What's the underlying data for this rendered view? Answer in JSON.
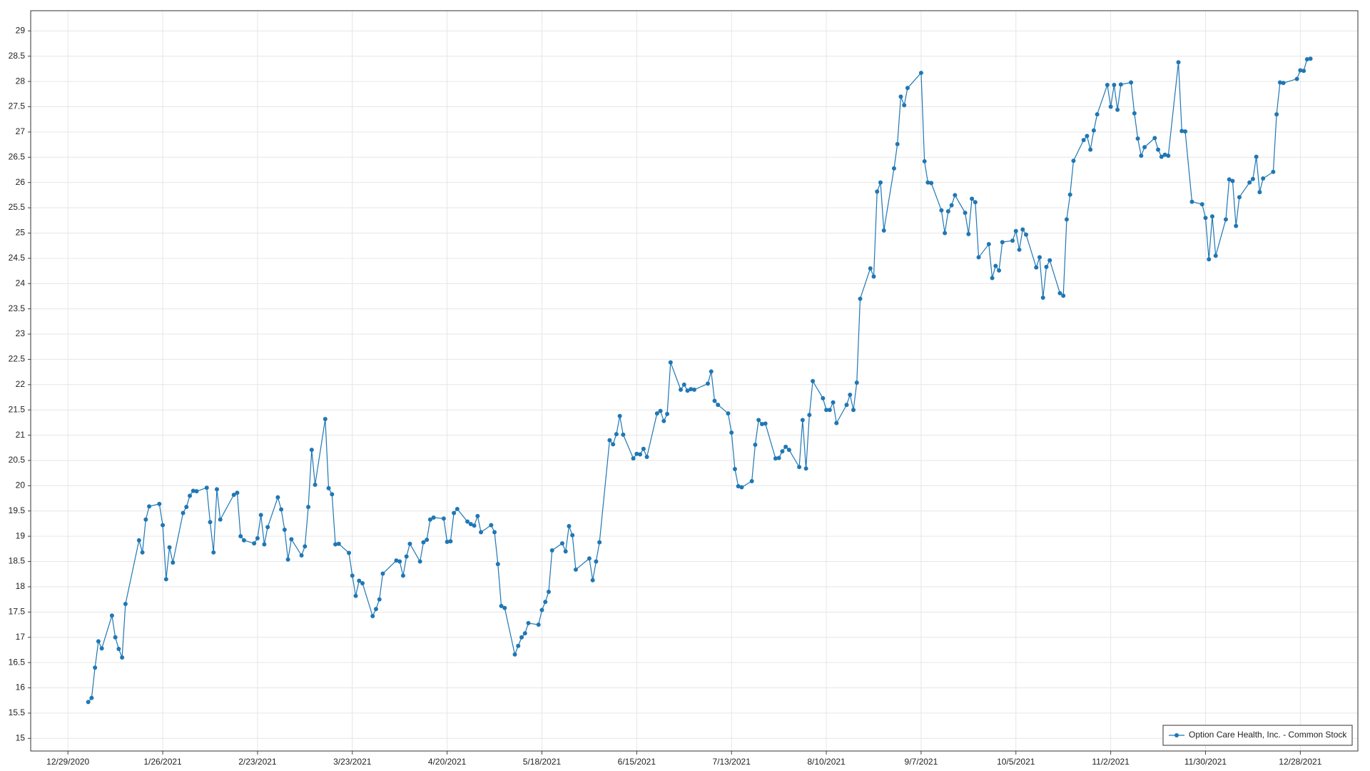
{
  "chart_data": {
    "type": "line",
    "x": [
      "1/4/2021",
      "1/5/2021",
      "1/6/2021",
      "1/7/2021",
      "1/8/2021",
      "1/11/2021",
      "1/12/2021",
      "1/13/2021",
      "1/14/2021",
      "1/15/2021",
      "1/19/2021",
      "1/20/2021",
      "1/21/2021",
      "1/22/2021",
      "1/25/2021",
      "1/26/2021",
      "1/27/2021",
      "1/28/2021",
      "1/29/2021",
      "2/1/2021",
      "2/2/2021",
      "2/3/2021",
      "2/4/2021",
      "2/5/2021",
      "2/8/2021",
      "2/9/2021",
      "2/10/2021",
      "2/11/2021",
      "2/12/2021",
      "2/16/2021",
      "2/17/2021",
      "2/18/2021",
      "2/19/2021",
      "2/22/2021",
      "2/23/2021",
      "2/24/2021",
      "2/25/2021",
      "2/26/2021",
      "3/1/2021",
      "3/2/2021",
      "3/3/2021",
      "3/4/2021",
      "3/5/2021",
      "3/8/2021",
      "3/9/2021",
      "3/10/2021",
      "3/11/2021",
      "3/12/2021",
      "3/15/2021",
      "3/16/2021",
      "3/17/2021",
      "3/18/2021",
      "3/19/2021",
      "3/22/2021",
      "3/23/2021",
      "3/24/2021",
      "3/25/2021",
      "3/26/2021",
      "3/29/2021",
      "3/30/2021",
      "3/31/2021",
      "4/1/2021",
      "4/5/2021",
      "4/6/2021",
      "4/7/2021",
      "4/8/2021",
      "4/9/2021",
      "4/12/2021",
      "4/13/2021",
      "4/14/2021",
      "4/15/2021",
      "4/16/2021",
      "4/19/2021",
      "4/20/2021",
      "4/21/2021",
      "4/22/2021",
      "4/23/2021",
      "4/26/2021",
      "4/27/2021",
      "4/28/2021",
      "4/29/2021",
      "4/30/2021",
      "5/3/2021",
      "5/4/2021",
      "5/5/2021",
      "5/6/2021",
      "5/7/2021",
      "5/10/2021",
      "5/11/2021",
      "5/12/2021",
      "5/13/2021",
      "5/14/2021",
      "5/17/2021",
      "5/18/2021",
      "5/19/2021",
      "5/20/2021",
      "5/21/2021",
      "5/24/2021",
      "5/25/2021",
      "5/26/2021",
      "5/27/2021",
      "5/28/2021",
      "6/1/2021",
      "6/2/2021",
      "6/3/2021",
      "6/4/2021",
      "6/7/2021",
      "6/8/2021",
      "6/9/2021",
      "6/10/2021",
      "6/11/2021",
      "6/14/2021",
      "6/15/2021",
      "6/16/2021",
      "6/17/2021",
      "6/18/2021",
      "6/21/2021",
      "6/22/2021",
      "6/23/2021",
      "6/24/2021",
      "6/25/2021",
      "6/28/2021",
      "6/29/2021",
      "6/30/2021",
      "7/1/2021",
      "7/2/2021",
      "7/6/2021",
      "7/7/2021",
      "7/8/2021",
      "7/9/2021",
      "7/12/2021",
      "7/13/2021",
      "7/14/2021",
      "7/15/2021",
      "7/16/2021",
      "7/19/2021",
      "7/20/2021",
      "7/21/2021",
      "7/22/2021",
      "7/23/2021",
      "7/26/2021",
      "7/27/2021",
      "7/28/2021",
      "7/29/2021",
      "7/30/2021",
      "8/2/2021",
      "8/3/2021",
      "8/4/2021",
      "8/5/2021",
      "8/6/2021",
      "8/9/2021",
      "8/10/2021",
      "8/11/2021",
      "8/12/2021",
      "8/13/2021",
      "8/16/2021",
      "8/17/2021",
      "8/18/2021",
      "8/19/2021",
      "8/20/2021",
      "8/23/2021",
      "8/24/2021",
      "8/25/2021",
      "8/26/2021",
      "8/27/2021",
      "8/30/2021",
      "8/31/2021",
      "9/1/2021",
      "9/2/2021",
      "9/3/2021",
      "9/7/2021",
      "9/8/2021",
      "9/9/2021",
      "9/10/2021",
      "9/13/2021",
      "9/14/2021",
      "9/15/2021",
      "9/16/2021",
      "9/17/2021",
      "9/20/2021",
      "9/21/2021",
      "9/22/2021",
      "9/23/2021",
      "9/24/2021",
      "9/27/2021",
      "9/28/2021",
      "9/29/2021",
      "9/30/2021",
      "10/1/2021",
      "10/4/2021",
      "10/5/2021",
      "10/6/2021",
      "10/7/2021",
      "10/8/2021",
      "10/11/2021",
      "10/12/2021",
      "10/13/2021",
      "10/14/2021",
      "10/15/2021",
      "10/18/2021",
      "10/19/2021",
      "10/20/2021",
      "10/21/2021",
      "10/22/2021",
      "10/25/2021",
      "10/26/2021",
      "10/27/2021",
      "10/28/2021",
      "10/29/2021",
      "11/1/2021",
      "11/2/2021",
      "11/3/2021",
      "11/4/2021",
      "11/5/2021",
      "11/8/2021",
      "11/9/2021",
      "11/10/2021",
      "11/11/2021",
      "11/12/2021",
      "11/15/2021",
      "11/16/2021",
      "11/17/2021",
      "11/18/2021",
      "11/19/2021",
      "11/22/2021",
      "11/23/2021",
      "11/24/2021",
      "11/26/2021",
      "11/29/2021",
      "11/30/2021",
      "12/1/2021",
      "12/2/2021",
      "12/3/2021",
      "12/6/2021",
      "12/7/2021",
      "12/8/2021",
      "12/9/2021",
      "12/10/2021",
      "12/13/2021",
      "12/14/2021",
      "12/15/2021",
      "12/16/2021",
      "12/17/2021",
      "12/20/2021",
      "12/21/2021",
      "12/22/2021",
      "12/23/2021",
      "12/27/2021",
      "12/28/2021",
      "12/29/2021",
      "12/30/2021",
      "12/31/2021"
    ],
    "series": [
      {
        "name": "Option Care Health, Inc. - Common Stock",
        "color": "#1f77b4",
        "values": [
          15.72,
          15.8,
          16.4,
          16.92,
          16.78,
          17.43,
          17.0,
          16.77,
          16.6,
          17.66,
          18.92,
          18.68,
          19.33,
          19.59,
          19.64,
          19.22,
          18.15,
          18.78,
          18.48,
          19.46,
          19.58,
          19.8,
          19.9,
          19.89,
          19.96,
          19.28,
          18.68,
          19.93,
          19.33,
          19.82,
          19.86,
          19.0,
          18.92,
          18.86,
          18.96,
          19.42,
          18.84,
          19.18,
          19.77,
          19.53,
          19.13,
          18.54,
          18.94,
          18.62,
          18.8,
          19.58,
          20.71,
          20.02,
          21.32,
          19.95,
          19.83,
          18.84,
          18.85,
          18.67,
          18.22,
          17.82,
          18.12,
          18.07,
          17.42,
          17.56,
          17.75,
          18.26,
          18.52,
          18.5,
          18.22,
          18.6,
          18.85,
          18.5,
          18.88,
          18.93,
          19.33,
          19.37,
          19.35,
          18.89,
          18.9,
          19.46,
          19.54,
          19.29,
          19.24,
          19.21,
          19.4,
          19.08,
          19.22,
          19.08,
          18.45,
          17.62,
          17.58,
          16.66,
          16.83,
          17.0,
          17.08,
          17.28,
          17.25,
          17.54,
          17.7,
          17.9,
          18.72,
          18.86,
          18.7,
          19.2,
          19.02,
          18.34,
          18.56,
          18.13,
          18.5,
          18.88,
          20.9,
          20.82,
          21.02,
          21.38,
          21.01,
          20.54,
          20.63,
          20.62,
          20.73,
          20.57,
          21.43,
          21.48,
          21.28,
          21.42,
          22.44,
          21.9,
          22.0,
          21.88,
          21.91,
          21.9,
          22.02,
          22.26,
          21.68,
          21.6,
          21.43,
          21.05,
          20.33,
          19.99,
          19.97,
          20.09,
          20.81,
          21.3,
          21.22,
          21.23,
          20.54,
          20.55,
          20.68,
          20.77,
          20.71,
          20.37,
          21.3,
          20.34,
          21.4,
          22.07,
          21.73,
          21.5,
          21.5,
          21.65,
          21.24,
          21.6,
          21.8,
          21.5,
          22.04,
          23.7,
          24.3,
          24.14,
          25.82,
          26.0,
          25.05,
          26.28,
          26.76,
          27.7,
          27.53,
          27.87,
          28.17,
          26.42,
          26.0,
          25.99,
          25.45,
          25.0,
          25.43,
          25.55,
          25.75,
          25.4,
          24.98,
          25.68,
          25.61,
          24.52,
          24.78,
          24.11,
          24.35,
          24.26,
          24.82,
          24.85,
          25.04,
          24.67,
          25.07,
          24.97,
          24.32,
          24.52,
          23.72,
          24.33,
          24.46,
          23.81,
          23.76,
          25.27,
          25.76,
          26.43,
          26.84,
          26.92,
          26.65,
          27.03,
          27.35,
          27.93,
          27.5,
          27.93,
          27.44,
          27.94,
          27.98,
          27.37,
          26.87,
          26.53,
          26.7,
          26.88,
          26.65,
          26.51,
          26.55,
          26.53,
          28.38,
          27.02,
          27.01,
          25.62,
          25.57,
          25.3,
          24.48,
          25.33,
          24.55,
          25.27,
          26.06,
          26.03,
          25.14,
          25.71,
          26.0,
          26.07,
          26.51,
          25.81,
          26.08,
          26.21,
          27.35,
          27.98,
          27.97,
          28.05,
          28.22,
          28.21,
          28.44,
          28.45
        ]
      }
    ],
    "xlim": [
      "12/18/2020",
      "1/14/2022"
    ],
    "xticks": [
      "12/29/2020",
      "1/26/2021",
      "2/23/2021",
      "3/23/2021",
      "4/20/2021",
      "5/18/2021",
      "6/15/2021",
      "7/13/2021",
      "8/10/2021",
      "9/7/2021",
      "10/5/2021",
      "11/2/2021",
      "11/30/2021",
      "12/28/2021"
    ],
    "ylim": [
      14.75,
      29.4
    ],
    "yticks": [
      15,
      15.5,
      16,
      16.5,
      17,
      17.5,
      18,
      18.5,
      19,
      19.5,
      20,
      20.5,
      21,
      21.5,
      22,
      22.5,
      23,
      23.5,
      24,
      24.5,
      25,
      25.5,
      26,
      26.5,
      27,
      27.5,
      28,
      28.5,
      29
    ],
    "grid": true,
    "legend": "lower right"
  }
}
